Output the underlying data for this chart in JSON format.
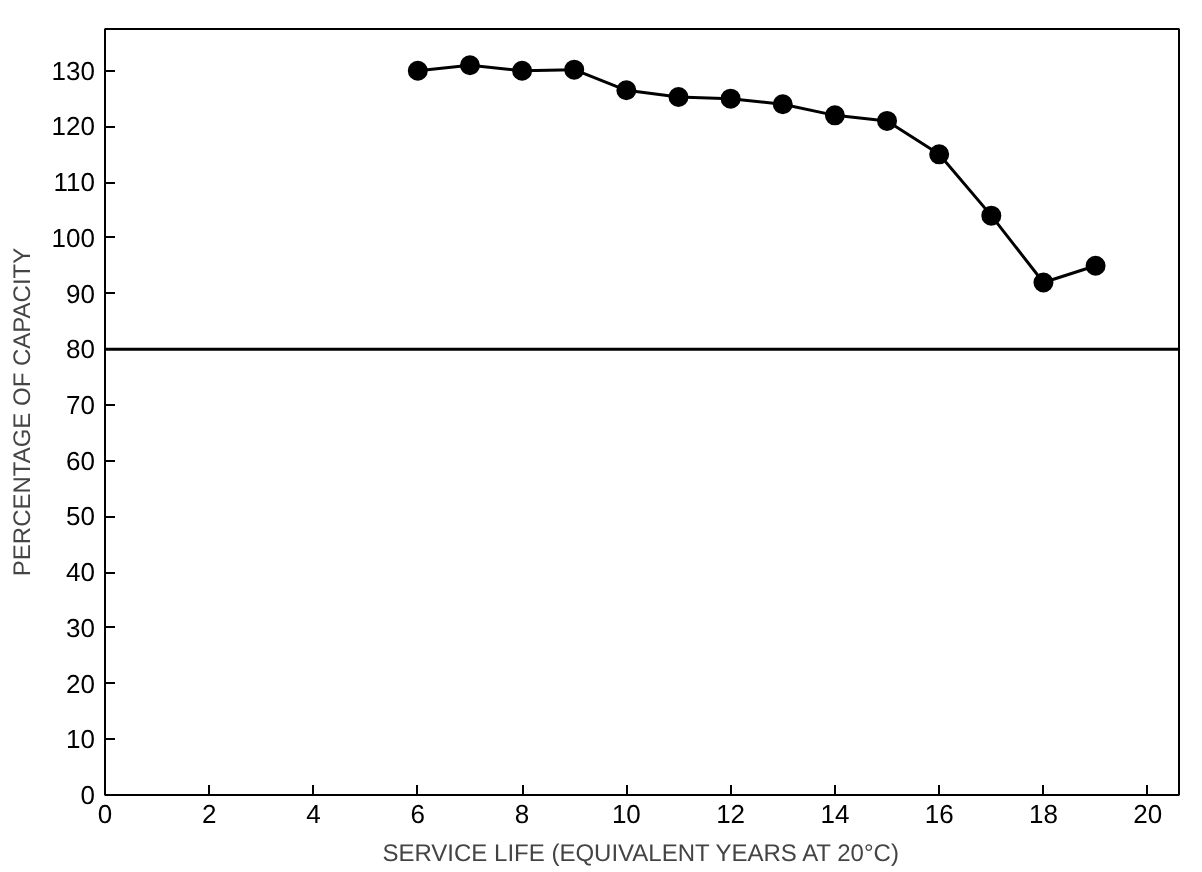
{
  "chart_data": {
    "type": "line",
    "xlabel": "SERVICE LIFE (EQUIVALENT YEARS AT 20°C)",
    "ylabel": "PERCENTAGE OF CAPACITY",
    "x": [
      6,
      7,
      8,
      9,
      10,
      11,
      12,
      13,
      14,
      15,
      16,
      17,
      18,
      19
    ],
    "series": [
      {
        "color": "#000000",
        "values": [
          130,
          131,
          130,
          130.2,
          126.5,
          125.3,
          125,
          124,
          122,
          121,
          115,
          104,
          92,
          95
        ]
      }
    ],
    "xlim": [
      0,
      20.6
    ],
    "ylim": [
      0,
      137.5
    ],
    "xticks": [
      0,
      2,
      4,
      6,
      8,
      10,
      12,
      14,
      16,
      18,
      20
    ],
    "yticks": [
      0,
      10,
      20,
      30,
      40,
      50,
      60,
      70,
      80,
      90,
      100,
      110,
      120,
      130
    ],
    "ref_lines": [
      {
        "axis": "y",
        "value": 80,
        "color": "#000000"
      }
    ],
    "marker": "circle",
    "line_style": "solid",
    "grid": false
  }
}
